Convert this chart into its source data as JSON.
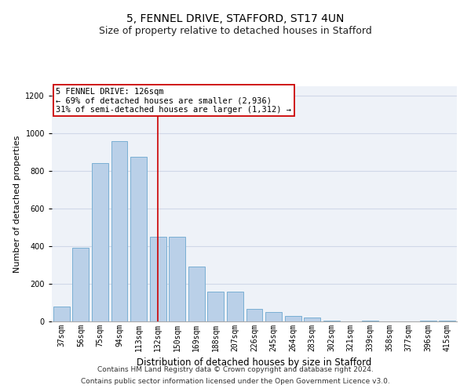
{
  "title1": "5, FENNEL DRIVE, STAFFORD, ST17 4UN",
  "title2": "Size of property relative to detached houses in Stafford",
  "xlabel": "Distribution of detached houses by size in Stafford",
  "ylabel": "Number of detached properties",
  "categories": [
    "37sqm",
    "56sqm",
    "75sqm",
    "94sqm",
    "113sqm",
    "132sqm",
    "150sqm",
    "169sqm",
    "188sqm",
    "207sqm",
    "226sqm",
    "245sqm",
    "264sqm",
    "283sqm",
    "302sqm",
    "321sqm",
    "339sqm",
    "358sqm",
    "377sqm",
    "396sqm",
    "415sqm"
  ],
  "values": [
    80,
    390,
    840,
    960,
    875,
    450,
    450,
    290,
    160,
    160,
    65,
    50,
    30,
    20,
    5,
    0,
    5,
    0,
    0,
    5,
    5
  ],
  "bar_color": "#bad0e8",
  "bar_edge_color": "#7aafd4",
  "red_line_x": 5.0,
  "annotation_line1": "5 FENNEL DRIVE: 126sqm",
  "annotation_line2": "← 69% of detached houses are smaller (2,936)",
  "annotation_line3": "31% of semi-detached houses are larger (1,312) →",
  "annotation_box_color": "#ffffff",
  "annotation_box_edge": "#cc0000",
  "ylim": [
    0,
    1250
  ],
  "yticks": [
    0,
    200,
    400,
    600,
    800,
    1000,
    1200
  ],
  "grid_color": "#d0d8e8",
  "background_color": "#eef2f8",
  "footer1": "Contains HM Land Registry data © Crown copyright and database right 2024.",
  "footer2": "Contains public sector information licensed under the Open Government Licence v3.0.",
  "title1_fontsize": 10,
  "title2_fontsize": 9,
  "xlabel_fontsize": 8.5,
  "ylabel_fontsize": 8,
  "tick_fontsize": 7,
  "annotation_fontsize": 7.5,
  "footer_fontsize": 6.5
}
